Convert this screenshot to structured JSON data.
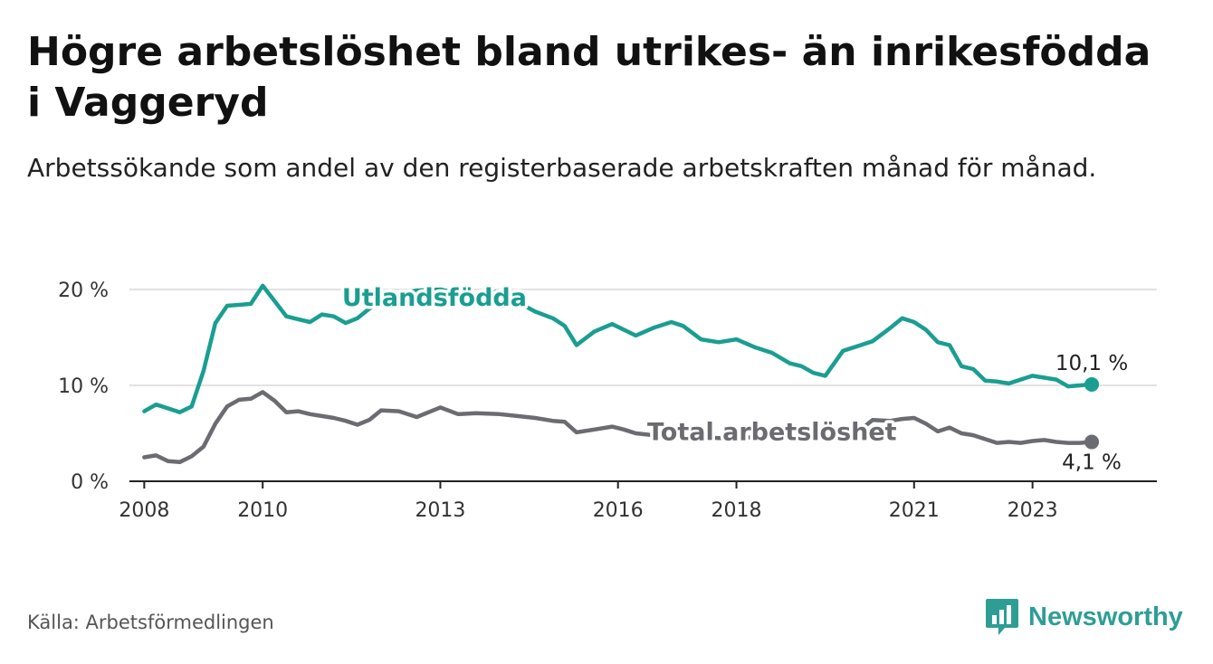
{
  "title": "Högre arbetslöshet bland utrikes- än inrikesfödda i Vaggeryd",
  "subtitle": "Arbetssökande som andel av den registerbaserade arbetskraften månad för månad.",
  "source": "Källa: Arbetsförmedlingen",
  "brand": {
    "name": "Newsworthy",
    "icon": "newsworthy-logo-icon"
  },
  "colors": {
    "foreign": "#1a9e91",
    "total": "#6b6b72",
    "grid": "#d9d9d9",
    "axis": "#222222",
    "brand": "#2e9e95"
  },
  "chart_data": {
    "type": "line",
    "title": "Högre arbetslöshet bland utrikes- än inrikesfödda i Vaggeryd",
    "xlabel": "",
    "ylabel": "",
    "xlim": [
      2007.75,
      2025.1
    ],
    "ylim": [
      0,
      20
    ],
    "y_ticks": [
      {
        "value": 0,
        "label": "0 %"
      },
      {
        "value": 10,
        "label": "10 %"
      },
      {
        "value": 20,
        "label": "20 %"
      }
    ],
    "x_ticks": [
      {
        "value": 2008,
        "label": "2008"
      },
      {
        "value": 2010,
        "label": "2010"
      },
      {
        "value": 2013,
        "label": "2013"
      },
      {
        "value": 2016,
        "label": "2016"
      },
      {
        "value": 2018,
        "label": "2018"
      },
      {
        "value": 2021,
        "label": "2021"
      },
      {
        "value": 2023,
        "label": "2023"
      }
    ],
    "grid": true,
    "series": [
      {
        "name": "Utlandsfödda",
        "end_label": "10,1 %",
        "x": [
          2008.0,
          2008.2,
          2008.4,
          2008.6,
          2008.8,
          2009.0,
          2009.2,
          2009.4,
          2009.6,
          2009.8,
          2010.0,
          2010.2,
          2010.4,
          2010.6,
          2010.8,
          2011.0,
          2011.2,
          2011.4,
          2011.6,
          2011.8,
          2012.0,
          2012.3,
          2012.6,
          2013.0,
          2013.3,
          2013.6,
          2014.0,
          2014.3,
          2014.6,
          2014.9,
          2015.1,
          2015.3,
          2015.6,
          2015.9,
          2016.1,
          2016.3,
          2016.6,
          2016.9,
          2017.1,
          2017.4,
          2017.7,
          2018.0,
          2018.3,
          2018.6,
          2018.9,
          2019.1,
          2019.3,
          2019.5,
          2019.8,
          2020.1,
          2020.3,
          2020.6,
          2020.8,
          2021.0,
          2021.2,
          2021.4,
          2021.6,
          2021.8,
          2022.0,
          2022.2,
          2022.4,
          2022.6,
          2022.8,
          2023.0,
          2023.2,
          2023.4,
          2023.6,
          2023.8,
          2024.0
        ],
        "values": [
          7.3,
          8.0,
          7.6,
          7.2,
          7.8,
          11.5,
          16.5,
          18.3,
          18.4,
          18.5,
          20.4,
          18.8,
          17.2,
          16.9,
          16.6,
          17.4,
          17.2,
          16.5,
          17.0,
          18.0,
          18.8,
          19.5,
          19.9,
          20.0,
          19.6,
          19.4,
          19.8,
          18.7,
          17.7,
          17.0,
          16.2,
          14.2,
          15.6,
          16.4,
          15.8,
          15.2,
          16.0,
          16.6,
          16.2,
          14.8,
          14.5,
          14.8,
          14.0,
          13.4,
          12.3,
          12.0,
          11.3,
          11.0,
          13.6,
          14.2,
          14.6,
          16.0,
          17.0,
          16.6,
          15.8,
          14.5,
          14.2,
          12.0,
          11.7,
          10.5,
          10.4,
          10.2,
          10.6,
          11.0,
          10.8,
          10.6,
          9.9,
          10.0,
          10.1
        ],
        "color": "#1a9e91"
      },
      {
        "name": "Total arbetslöshet",
        "end_label": "4,1 %",
        "x": [
          2008.0,
          2008.2,
          2008.4,
          2008.6,
          2008.8,
          2009.0,
          2009.2,
          2009.4,
          2009.6,
          2009.8,
          2010.0,
          2010.2,
          2010.4,
          2010.6,
          2010.8,
          2011.0,
          2011.2,
          2011.4,
          2011.6,
          2011.8,
          2012.0,
          2012.3,
          2012.6,
          2013.0,
          2013.3,
          2013.6,
          2014.0,
          2014.3,
          2014.6,
          2014.9,
          2015.1,
          2015.3,
          2015.6,
          2015.9,
          2016.1,
          2016.3,
          2016.6,
          2016.9,
          2017.1,
          2017.4,
          2017.7,
          2018.0,
          2018.3,
          2018.6,
          2018.9,
          2019.1,
          2019.3,
          2019.5,
          2019.8,
          2020.1,
          2020.3,
          2020.6,
          2020.8,
          2021.0,
          2021.2,
          2021.4,
          2021.6,
          2021.8,
          2022.0,
          2022.2,
          2022.4,
          2022.6,
          2022.8,
          2023.0,
          2023.2,
          2023.4,
          2023.6,
          2023.8,
          2024.0
        ],
        "values": [
          2.5,
          2.7,
          2.1,
          2.0,
          2.6,
          3.6,
          6.0,
          7.8,
          8.5,
          8.6,
          9.3,
          8.4,
          7.2,
          7.3,
          7.0,
          6.8,
          6.6,
          6.3,
          5.9,
          6.4,
          7.4,
          7.3,
          6.7,
          7.7,
          7.0,
          7.1,
          7.0,
          6.8,
          6.6,
          6.3,
          6.2,
          5.1,
          5.4,
          5.7,
          5.4,
          5.0,
          4.8,
          4.7,
          4.6,
          4.6,
          4.5,
          4.5,
          4.6,
          4.5,
          4.6,
          4.7,
          4.8,
          4.9,
          5.1,
          5.4,
          6.4,
          6.3,
          6.5,
          6.6,
          6.0,
          5.2,
          5.6,
          5.0,
          4.8,
          4.4,
          4.0,
          4.1,
          4.0,
          4.2,
          4.3,
          4.1,
          4.0,
          4.0,
          4.1
        ],
        "color": "#6b6b72"
      }
    ],
    "annotations": [
      {
        "text": "Utlandsfödda",
        "x": 2012.9,
        "y": 18.3,
        "series": 0
      },
      {
        "text": "Total arbetslöshet",
        "x": 2018.6,
        "y": 4.3,
        "series": 1
      }
    ]
  }
}
